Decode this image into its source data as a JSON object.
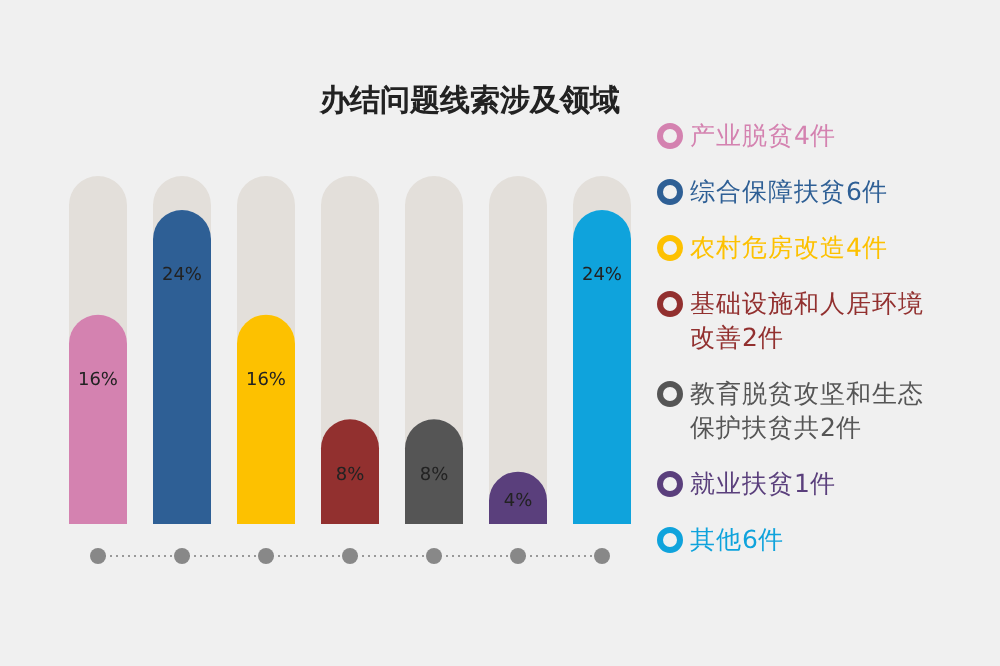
{
  "chart_data": {
    "type": "bar",
    "title": "办结问题线索涉及领域",
    "categories": [
      null,
      null,
      null,
      null,
      null,
      null,
      null
    ],
    "series": [
      {
        "name": "产业脱贫4件",
        "color": "#d482b0",
        "values": [
          16,
          null,
          null,
          null,
          null,
          null,
          null
        ],
        "value_labels": [
          "16%",
          null,
          null,
          null,
          null,
          null,
          null
        ]
      },
      {
        "name": "综合保障扶贫6件",
        "color": "#2e5f95",
        "values": [
          null,
          24,
          null,
          null,
          null,
          null,
          null
        ],
        "value_labels": [
          null,
          "24%",
          null,
          null,
          null,
          null,
          null
        ]
      },
      {
        "name": "农村危房改造4件",
        "color": "#fdc100",
        "values": [
          null,
          null,
          16,
          null,
          null,
          null,
          null
        ],
        "value_labels": [
          null,
          null,
          "16%",
          null,
          null,
          null,
          null
        ]
      },
      {
        "name": "基础设施和人居环境改善2件",
        "color": "#92302f",
        "values": [
          null,
          null,
          null,
          8,
          null,
          null,
          null
        ],
        "value_labels": [
          null,
          null,
          null,
          "8%",
          null,
          null,
          null
        ]
      },
      {
        "name": "教育脱贫攻坚和生态保护扶贫共2件",
        "color": "#555555",
        "values": [
          null,
          null,
          null,
          null,
          8,
          null,
          null
        ],
        "value_labels": [
          null,
          null,
          null,
          null,
          "8%",
          null,
          null
        ]
      },
      {
        "name": "就业扶贫1件",
        "color": "#5a3f7c",
        "values": [
          null,
          null,
          null,
          null,
          null,
          4,
          null
        ],
        "value_labels": [
          null,
          null,
          null,
          null,
          null,
          "4%",
          null
        ]
      },
      {
        "name": "其他6件",
        "color": "#0fa3dc",
        "values": [
          null,
          null,
          null,
          null,
          null,
          null,
          24
        ],
        "value_labels": [
          null,
          null,
          null,
          null,
          null,
          null,
          "24%"
        ]
      }
    ],
    "stacked": true,
    "legend": "right"
  }
}
